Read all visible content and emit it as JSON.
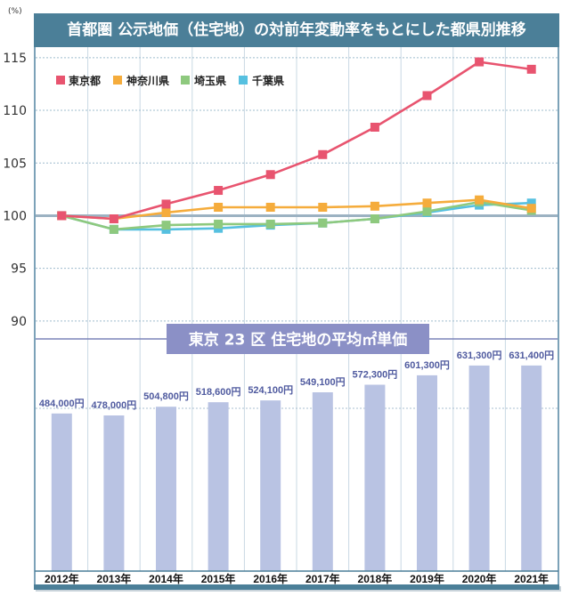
{
  "chart_data": [
    {
      "type": "line",
      "title": "首都圏 公示地価（住宅地）の対前年変動率をもとにした都県別推移",
      "ylabel": "(%)",
      "xlabel": "",
      "ylim": [
        88.3,
        116.0
      ],
      "yticks": [
        90,
        95,
        100,
        105,
        110,
        115
      ],
      "ytick_labels": [
        "90",
        "95",
        "100",
        "105",
        "110",
        "115"
      ],
      "baseline": 100,
      "grid": true,
      "legend": "top-left",
      "categories": [
        "2012年",
        "2013年",
        "2014年",
        "2015年",
        "2016年",
        "2017年",
        "2018年",
        "2019年",
        "2020年",
        "2021年"
      ],
      "series": [
        {
          "key": "tokyo",
          "name": "東京都",
          "color": "#e8546f",
          "values": [
            100.0,
            99.7,
            101.1,
            102.4,
            103.9,
            105.8,
            108.4,
            111.4,
            114.6,
            113.9
          ]
        },
        {
          "key": "kanagawa",
          "name": "神奈川県",
          "color": "#f5ac3c",
          "values": [
            100.0,
            99.7,
            100.3,
            100.8,
            100.8,
            100.8,
            100.9,
            101.2,
            101.5,
            100.7
          ]
        },
        {
          "key": "saitama",
          "name": "埼玉県",
          "color": "#8ec97e",
          "values": [
            100.0,
            98.7,
            99.1,
            99.2,
            99.2,
            99.3,
            99.7,
            100.4,
            101.3,
            100.5
          ]
        },
        {
          "key": "chiba",
          "name": "千葉県",
          "color": "#56c0e0",
          "values": [
            100.0,
            98.7,
            98.7,
            98.8,
            99.1,
            99.3,
            99.7,
            100.3,
            101.0,
            101.2
          ]
        }
      ]
    },
    {
      "type": "bar",
      "title": "東京 23 区 住宅地の平均㎡単価",
      "xlabel": "",
      "ylabel": "",
      "ylim": [
        0,
        713000
      ],
      "color": "#b9c3e3",
      "categories": [
        "2012年",
        "2013年",
        "2014年",
        "2015年",
        "2016年",
        "2017年",
        "2018年",
        "2019年",
        "2020年",
        "2021年"
      ],
      "values": [
        484000,
        478000,
        504800,
        518600,
        524100,
        549100,
        572300,
        601300,
        631300,
        631400
      ],
      "data_labels": [
        "484,000円",
        "478,000円",
        "504,800円",
        "518,600円",
        "524,100円",
        "549,100円",
        "572,300円",
        "601,300円",
        "631,300円",
        "631,400円"
      ]
    }
  ],
  "colors": {
    "header": "#4b7f98",
    "frame": "#5b8ba6",
    "bar_title_box": "#8b90c6",
    "separator": "#7c83b9",
    "bar_label": "#4f5a9f"
  }
}
